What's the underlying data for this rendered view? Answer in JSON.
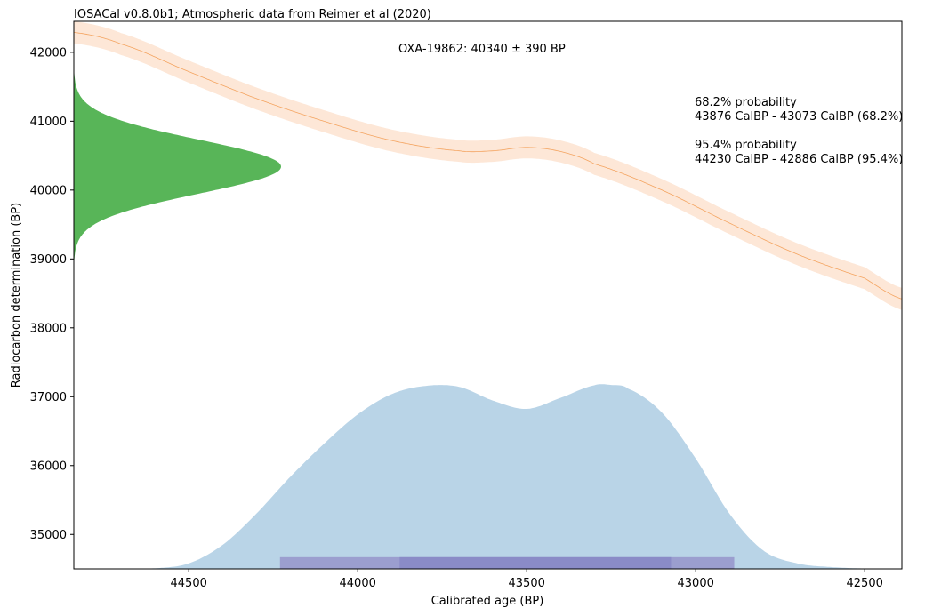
{
  "chart_data": {
    "type": "area",
    "title": "IOSACal v0.8.0b1; Atmospheric data from Reimer et al (2020)",
    "sample_label": "OXA-19862: 40340 ± 390 BP",
    "xlabel": "Calibrated age (BP)",
    "ylabel": "Radiocarbon determination (BP)",
    "xlim": [
      44840,
      42390
    ],
    "ylim": [
      34500,
      42450
    ],
    "x_ticks": [
      44500,
      44000,
      43500,
      43000,
      42500
    ],
    "y_ticks": [
      35000,
      36000,
      37000,
      38000,
      39000,
      40000,
      41000,
      42000
    ],
    "calibration_curve": {
      "x": [
        44840,
        44700,
        44500,
        44300,
        44100,
        43900,
        43700,
        43600,
        43500,
        43400,
        43300,
        43100,
        42900,
        42700,
        42500,
        42390
      ],
      "y": [
        42290,
        42120,
        41720,
        41330,
        41000,
        40720,
        40570,
        40570,
        40620,
        40560,
        40380,
        40000,
        39520,
        39070,
        38720,
        38420
      ],
      "sigma": 160
    },
    "radiocarbon_distribution": {
      "mean": 40340,
      "sigma": 390
    },
    "calibrated_distribution": {
      "x": [
        44840,
        44600,
        44500,
        44400,
        44300,
        44200,
        44100,
        44000,
        43900,
        43800,
        43700,
        43600,
        43500,
        43400,
        43300,
        43250,
        43200,
        43100,
        43000,
        42900,
        42800,
        42700,
        42600,
        42500,
        42390
      ],
      "density": [
        0.0,
        0.003,
        0.03,
        0.13,
        0.3,
        0.5,
        0.68,
        0.84,
        0.95,
        0.995,
        0.99,
        0.915,
        0.87,
        0.93,
        0.998,
        1.0,
        0.98,
        0.85,
        0.6,
        0.3,
        0.1,
        0.03,
        0.01,
        0.002,
        0.0
      ]
    },
    "ranges": [
      {
        "label": "68.2% probability",
        "from": 43876,
        "to": 43073,
        "text": "43876 CalBP - 43073 CalBP (68.2%)"
      },
      {
        "label": "95.4% probability",
        "from": 44230,
        "to": 42886,
        "text": "44230 CalBP - 42886 CalBP (95.4%)"
      }
    ],
    "colors": {
      "curve_line": "#f4a460",
      "curve_band": "#fde7d7",
      "radiocarbon_fill": "#58b558",
      "calibrated_fill": "#b9d4e7",
      "range_68": "#8a8bc7",
      "range_95": "#9b9ecf"
    },
    "grid": false
  }
}
